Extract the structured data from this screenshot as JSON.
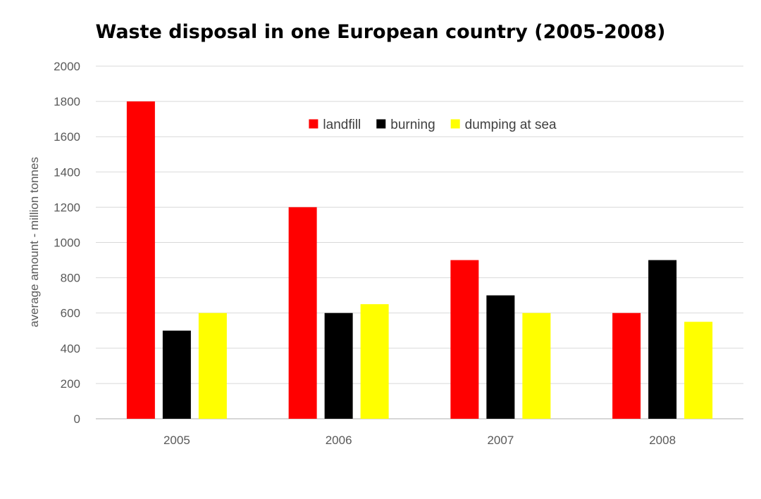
{
  "chart_data": {
    "type": "bar",
    "title": "Waste disposal in one European country (2005-2008)",
    "xlabel": "",
    "ylabel": "average amount - million tonnes",
    "categories": [
      "2005",
      "2006",
      "2007",
      "2008"
    ],
    "series": [
      {
        "name": "landfill",
        "color": "#ff0000",
        "values": [
          1800,
          1200,
          900,
          600
        ]
      },
      {
        "name": "burning",
        "color": "#000000",
        "values": [
          500,
          600,
          700,
          900
        ]
      },
      {
        "name": "dumping at sea",
        "color": "#ffff00",
        "values": [
          600,
          650,
          600,
          550
        ]
      }
    ],
    "ylim": [
      0,
      2000
    ],
    "yticks": [
      0,
      200,
      400,
      600,
      800,
      1000,
      1200,
      1400,
      1600,
      1800,
      2000
    ],
    "grid": true,
    "legend_position": "top-center"
  }
}
